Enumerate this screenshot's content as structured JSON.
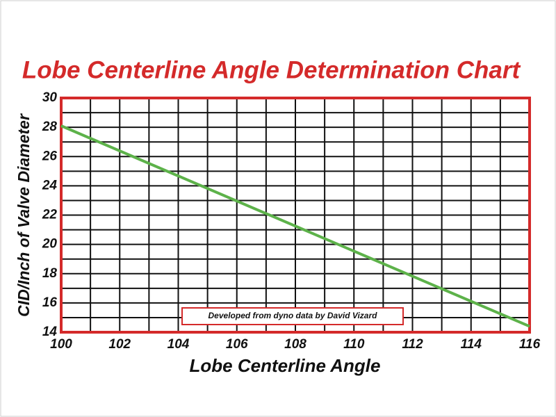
{
  "chart_data": {
    "type": "line",
    "title": "Lobe Centerline Angle Determination Chart",
    "xlabel": "Lobe Centerline Angle",
    "ylabel": "CID/Inch of Valve Diameter",
    "annotation": "Developed from dyno data by David Vizard",
    "x": [
      100,
      116
    ],
    "series": [
      {
        "color": "#5db24a",
        "values": [
          28.1,
          14.4
        ]
      }
    ],
    "xlim": [
      100,
      116
    ],
    "xticks": [
      100,
      102,
      104,
      106,
      108,
      110,
      112,
      114,
      116
    ],
    "ylim": [
      14,
      30
    ],
    "yticks": [
      14,
      16,
      18,
      20,
      22,
      24,
      26,
      28,
      30
    ],
    "xgrid": [
      101,
      102,
      103,
      104,
      105,
      106,
      107,
      108,
      109,
      110,
      111,
      112,
      113,
      114,
      115
    ],
    "ygrid": [
      15,
      16,
      17,
      18,
      19,
      20,
      21,
      22,
      23,
      24,
      25,
      26,
      27,
      28,
      29
    ],
    "grid": true
  }
}
